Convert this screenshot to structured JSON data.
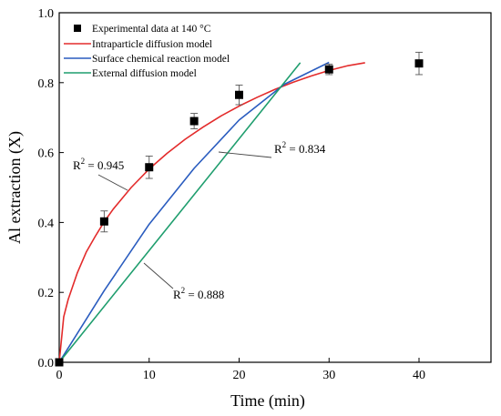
{
  "chart_data": {
    "type": "scatter",
    "xlabel": "Time (min)",
    "ylabel": "Al extraction (X)",
    "xlim": [
      0,
      48
    ],
    "ylim": [
      0,
      1.0
    ],
    "xticks": [
      0,
      10,
      20,
      30,
      40
    ],
    "yticks": [
      0.0,
      0.2,
      0.4,
      0.6,
      0.8,
      1.0
    ],
    "ytick_labels": [
      "0.0",
      "0.2",
      "0.4",
      "0.6",
      "0.8",
      "1.0"
    ],
    "legend_position": "top-left",
    "experimental": {
      "name": "Experimental data at 140 °C",
      "color": "#000000",
      "x": [
        0,
        5,
        10,
        15,
        20,
        30,
        40
      ],
      "y": [
        0.0,
        0.403,
        0.558,
        0.69,
        0.765,
        0.838,
        0.855
      ],
      "err": [
        0.0,
        0.03,
        0.032,
        0.022,
        0.028,
        0.015,
        0.032
      ]
    },
    "series": [
      {
        "name": "Intraparticle diffusion model",
        "color": "#e32b2b",
        "x": [
          0,
          0.5,
          1,
          2,
          3,
          4,
          5,
          6,
          8,
          10,
          12,
          14,
          16,
          18,
          20,
          22,
          24,
          26,
          28,
          30,
          32,
          34
        ],
        "y": [
          0.0,
          0.13,
          0.18,
          0.255,
          0.315,
          0.36,
          0.402,
          0.438,
          0.5,
          0.553,
          0.598,
          0.638,
          0.673,
          0.705,
          0.733,
          0.758,
          0.781,
          0.801,
          0.819,
          0.835,
          0.848,
          0.857
        ]
      },
      {
        "name": "Surface chemical reaction model",
        "color": "#2a5cbf",
        "x": [
          0,
          5,
          10,
          15,
          20,
          25,
          30
        ],
        "y": [
          0.0,
          0.205,
          0.395,
          0.555,
          0.693,
          0.795,
          0.858
        ]
      },
      {
        "name": "External diffusion model",
        "color": "#1f9e6e",
        "x": [
          0,
          26.8
        ],
        "y": [
          0.0,
          0.857
        ]
      }
    ],
    "annotations": [
      {
        "text": "R",
        "sup": "2",
        "rest": " = 0.945"
      },
      {
        "text": "R",
        "sup": "2",
        "rest": " = 0.834"
      },
      {
        "text": "R",
        "sup": "2",
        "rest": " = 0.888"
      }
    ]
  }
}
